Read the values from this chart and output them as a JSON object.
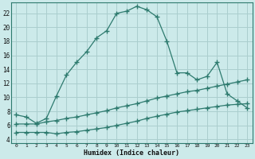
{
  "background_color": "#cceaea",
  "grid_color": "#aacece",
  "line_color": "#2d7a6e",
  "xlabel": "Humidex (Indice chaleur)",
  "x_ticks": [
    0,
    1,
    2,
    3,
    4,
    5,
    6,
    7,
    8,
    9,
    10,
    11,
    12,
    13,
    14,
    15,
    16,
    17,
    18,
    19,
    20,
    21,
    22,
    23
  ],
  "ylim": [
    3.5,
    23.5
  ],
  "xlim": [
    -0.5,
    23.5
  ],
  "yticks": [
    4,
    6,
    8,
    10,
    12,
    14,
    16,
    18,
    20,
    22
  ],
  "line1_x": [
    0,
    1,
    2,
    3,
    4,
    5,
    6,
    7,
    8,
    9,
    10,
    11,
    12,
    13,
    14,
    15,
    16,
    17,
    18,
    19,
    20,
    21,
    22,
    23
  ],
  "line1_y": [
    7.5,
    7.2,
    6.3,
    7.0,
    10.2,
    13.2,
    15.0,
    16.5,
    18.5,
    19.5,
    22.0,
    22.3,
    23.0,
    22.5,
    21.5,
    18.0,
    13.5,
    13.5,
    12.5,
    13.0,
    15.0,
    10.5,
    9.5,
    8.5
  ],
  "line2_x": [
    0,
    1,
    2,
    3,
    4,
    5,
    6,
    7,
    8,
    9,
    10,
    11,
    12,
    13,
    14,
    15,
    16,
    17,
    18,
    19,
    20,
    21,
    22,
    23
  ],
  "line2_y": [
    6.2,
    6.2,
    6.2,
    6.5,
    6.7,
    7.0,
    7.2,
    7.5,
    7.8,
    8.1,
    8.5,
    8.8,
    9.1,
    9.5,
    9.9,
    10.2,
    10.5,
    10.8,
    11.0,
    11.3,
    11.6,
    11.9,
    12.2,
    12.5
  ],
  "line3_x": [
    0,
    1,
    2,
    3,
    4,
    5,
    6,
    7,
    8,
    9,
    10,
    11,
    12,
    13,
    14,
    15,
    16,
    17,
    18,
    19,
    20,
    21,
    22,
    23
  ],
  "line3_y": [
    5.0,
    5.0,
    5.0,
    5.0,
    4.8,
    5.0,
    5.1,
    5.3,
    5.5,
    5.7,
    6.0,
    6.3,
    6.6,
    7.0,
    7.3,
    7.6,
    7.9,
    8.1,
    8.3,
    8.5,
    8.7,
    8.9,
    9.0,
    9.1
  ]
}
